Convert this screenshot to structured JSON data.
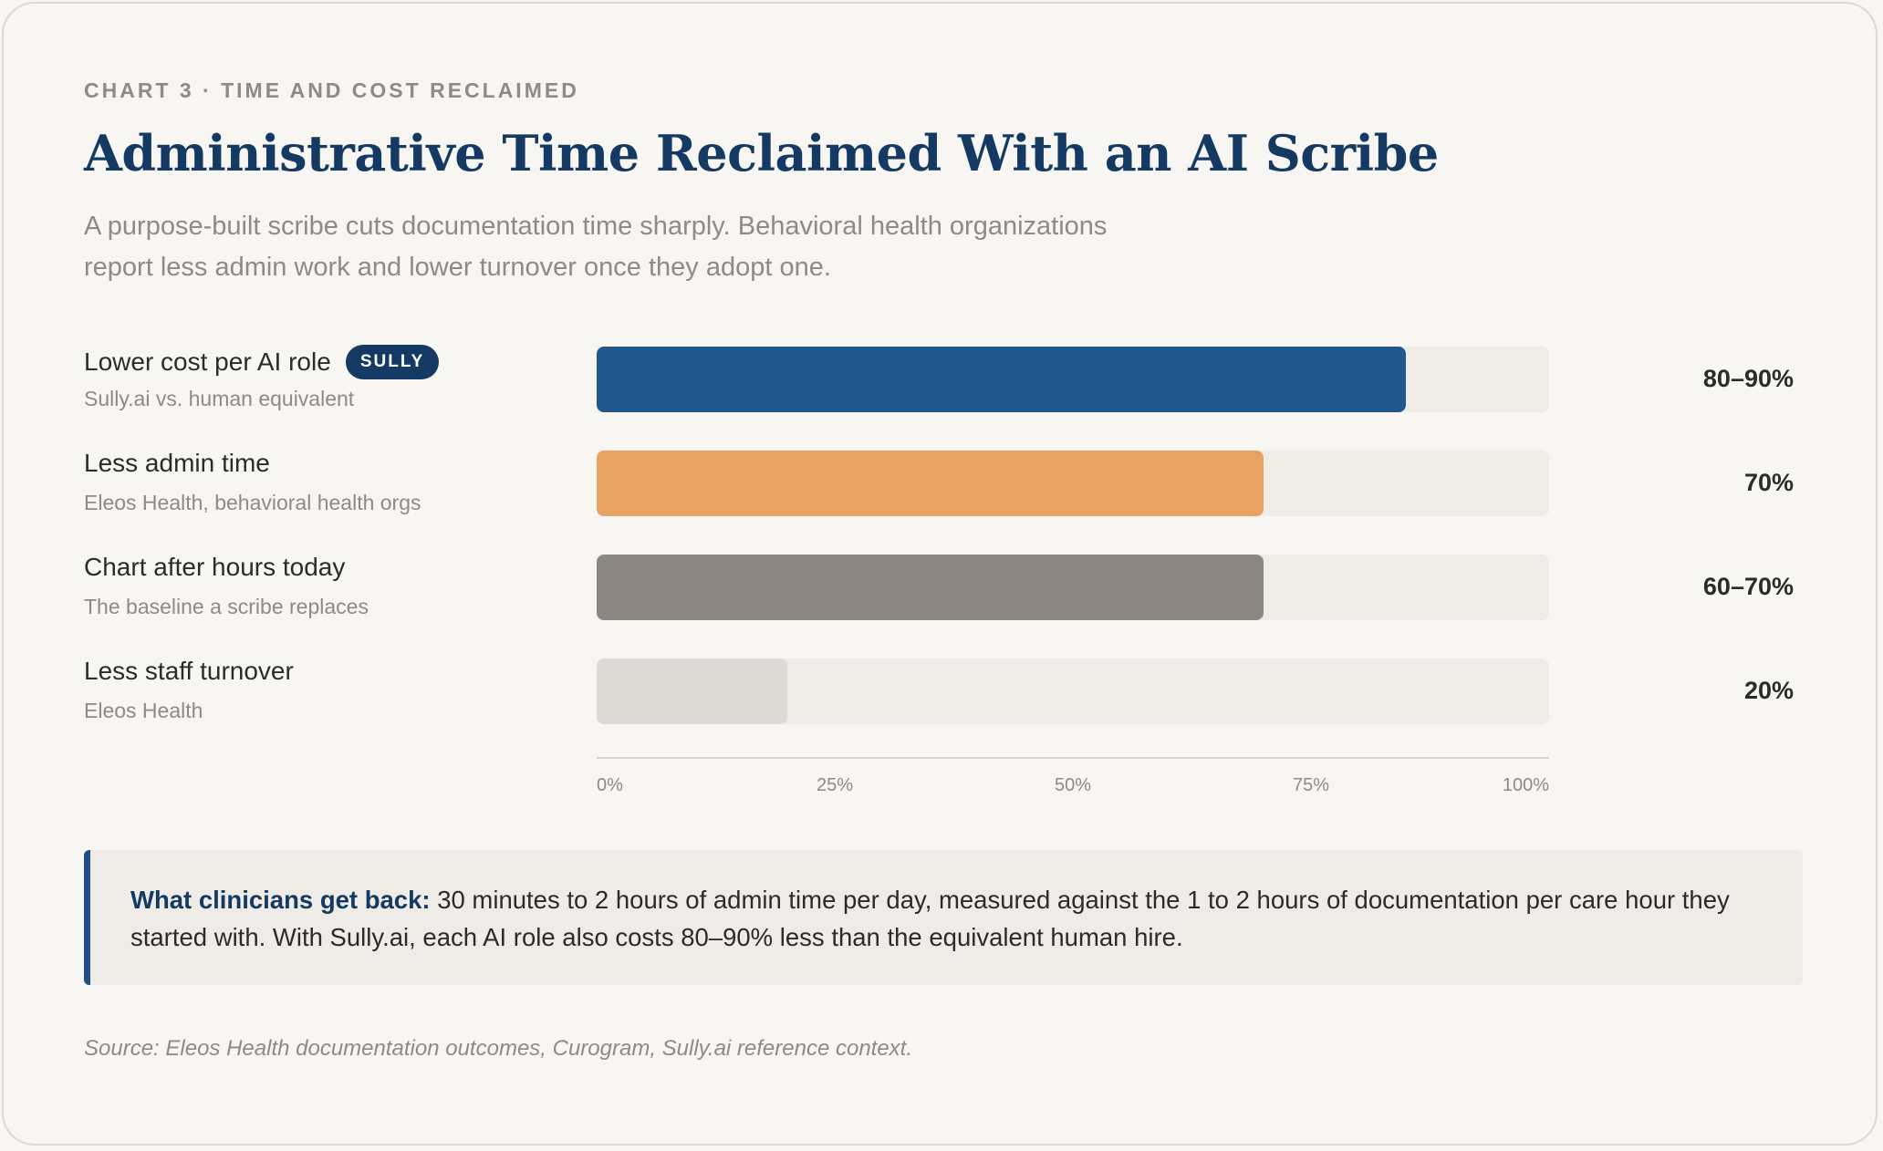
{
  "eyebrow": "CHART 3 · TIME AND COST RECLAIMED",
  "title": "Administrative Time Reclaimed With an AI Scribe",
  "subtitle": "A purpose-built scribe cuts documentation time sharply. Behavioral health organizations report less admin work and lower turnover once they adopt one.",
  "chart_data": {
    "type": "bar",
    "orientation": "horizontal",
    "xlim": [
      0,
      100
    ],
    "ticks": [
      "0%",
      "25%",
      "50%",
      "75%",
      "100%"
    ],
    "rows": [
      {
        "label": "Lower cost per AI role",
        "badge": "SULLY",
        "sublabel": "Sully.ai vs. human equivalent",
        "value": 85,
        "value_label": "80–90%",
        "color": "#21578c"
      },
      {
        "label": "Less admin time",
        "badge": "",
        "sublabel": "Eleos Health, behavioral health orgs",
        "value": 70,
        "value_label": "70%",
        "color": "#e8a262"
      },
      {
        "label": "Chart after hours today",
        "badge": "",
        "sublabel": "The baseline a scribe replaces",
        "value": 70,
        "value_label": "60–70%",
        "color": "#8c8780"
      },
      {
        "label": "Less staff turnover",
        "badge": "",
        "sublabel": "Eleos Health",
        "value": 20,
        "value_label": "20%",
        "color": "#ddd9d4"
      }
    ]
  },
  "callout": {
    "lead": "What clinicians get back:",
    "text": " 30 minutes to 2 hours of admin time per day, measured against the 1 to 2 hours of documentation per care hour they started with. With Sully.ai, each AI role also costs 80–90% less than the equivalent human hire."
  },
  "source": "Source: Eleos Health documentation outcomes, Curogram, Sully.ai reference context."
}
